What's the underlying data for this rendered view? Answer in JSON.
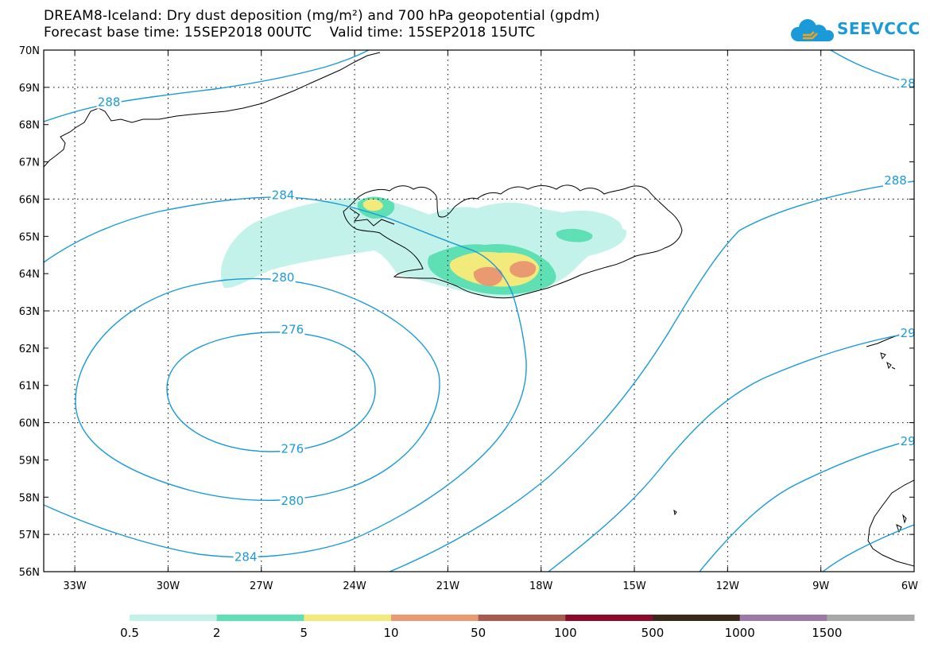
{
  "header": {
    "title_line1": "DREAM8-Iceland: Dry dust deposition (mg/m²) and 700 hPa geopotential (gpdm)",
    "title_line2": "Forecast base time: 15SEP2018 00UTC    Valid time: 15SEP2018 15UTC"
  },
  "logo": {
    "text": "SEEVCCC",
    "icon": "cloud-icon",
    "color": "#1a9ad9"
  },
  "axes": {
    "lat_labels": [
      "70N",
      "69N",
      "68N",
      "67N",
      "66N",
      "65N",
      "64N",
      "63N",
      "62N",
      "61N",
      "60N",
      "59N",
      "58N",
      "57N",
      "56N"
    ],
    "lon_labels": [
      "33W",
      "30W",
      "27W",
      "24W",
      "21W",
      "18W",
      "15W",
      "12W",
      "9W",
      "6W"
    ]
  },
  "contours": {
    "color": "#1a9ad9",
    "labels": [
      {
        "text": "288",
        "lon": -31.9,
        "lat": 68.6
      },
      {
        "text": "28",
        "lon": -6.2,
        "lat": 69.1
      },
      {
        "text": "284",
        "lon": -26.3,
        "lat": 66.1
      },
      {
        "text": "288",
        "lon": -6.6,
        "lat": 66.5
      },
      {
        "text": "280",
        "lon": -26.3,
        "lat": 63.9
      },
      {
        "text": "276",
        "lon": -26.0,
        "lat": 62.5
      },
      {
        "text": "29",
        "lon": -6.2,
        "lat": 62.4
      },
      {
        "text": "276",
        "lon": -26.0,
        "lat": 59.3
      },
      {
        "text": "29",
        "lon": -6.2,
        "lat": 59.5
      },
      {
        "text": "280",
        "lon": -26.0,
        "lat": 57.9
      },
      {
        "text": "284",
        "lon": -27.5,
        "lat": 56.4
      }
    ]
  },
  "colorbar": {
    "labels": [
      "0.5",
      "2",
      "5",
      "10",
      "50",
      "100",
      "500",
      "1000",
      "1500"
    ],
    "colors": [
      "#c2f2ea",
      "#5fdfb4",
      "#f2ea7a",
      "#ea9a70",
      "#a85a4e",
      "#8b0a2a",
      "#3a2818",
      "#9a7aa6",
      "#a8a8a8"
    ]
  }
}
